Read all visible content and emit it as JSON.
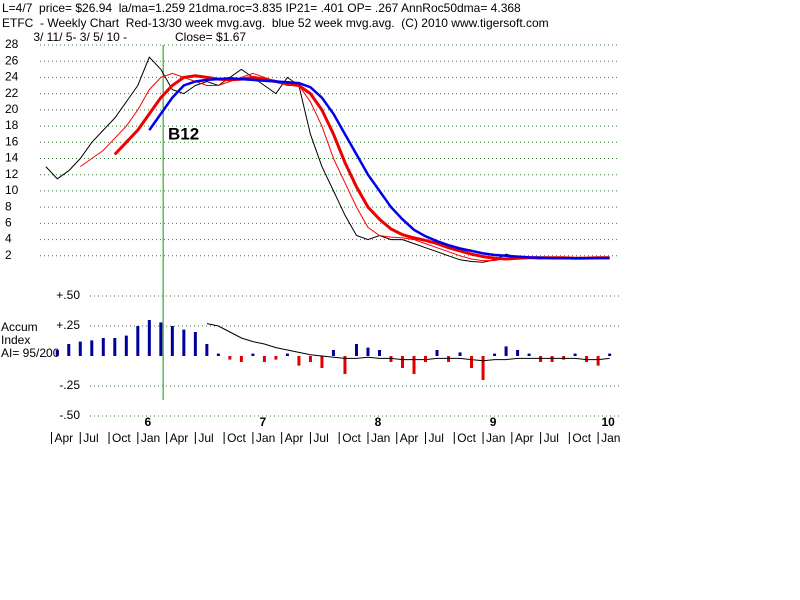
{
  "chart_data": [
    {
      "type": "line",
      "header": "L=4/7  price= $26.94  la/ma=1.259 21dma.roc=3.835 IP21= .401 OP= .267 AnnRoc50dma= 4.368",
      "title": "ETFC  - Weekly Chart  Red-13/30 week mvg.avg.  blue 52 week mvg.avg.  (C) 2010 www.tigersoft.com",
      "subtitle": " 3/ 11/ 5- 3/ 5/ 10 -",
      "annotations": [
        "Close= $1.67",
        "B12"
      ],
      "signal_x": 6.22,
      "xlim": [
        5.15,
        10.19
      ],
      "ylim": [
        0,
        28
      ],
      "yticks": [
        2,
        4,
        6,
        8,
        10,
        12,
        14,
        16,
        18,
        20,
        22,
        24,
        26,
        28
      ],
      "grid": true,
      "x": [
        5.2,
        5.3,
        5.4,
        5.5,
        5.6,
        5.7,
        5.8,
        5.9,
        6.0,
        6.1,
        6.2,
        6.3,
        6.4,
        6.5,
        6.6,
        6.7,
        6.8,
        6.9,
        7.0,
        7.1,
        7.2,
        7.3,
        7.4,
        7.5,
        7.6,
        7.7,
        7.8,
        7.9,
        8.0,
        8.1,
        8.2,
        8.3,
        8.4,
        8.5,
        8.6,
        8.7,
        8.8,
        8.9,
        9.0,
        9.1,
        9.2,
        9.3,
        9.4,
        9.5,
        9.6,
        9.7,
        9.8,
        9.9,
        10.0,
        10.1
      ],
      "series": [
        {
          "color": "#000000",
          "width": 1,
          "values": [
            13,
            11.5,
            12.5,
            14,
            16,
            17.5,
            19,
            21,
            23,
            26.5,
            25,
            22.5,
            22,
            23,
            23.5,
            23,
            24,
            25,
            24,
            23,
            22,
            24,
            23,
            17,
            13,
            10,
            7,
            4.5,
            4,
            4.5,
            4,
            4,
            3.5,
            3,
            2.5,
            2,
            1.5,
            1.3,
            1.2,
            1.5,
            2.2,
            1.8,
            1.7,
            1.6,
            1.8,
            1.7,
            1.6,
            1.8,
            1.8,
            1.7
          ]
        },
        {
          "color": "#ff0000",
          "width": 1,
          "values": [
            null,
            null,
            null,
            13,
            14,
            15,
            16.5,
            18,
            20,
            22.5,
            24,
            24.5,
            24,
            23.5,
            23,
            23,
            23.5,
            24,
            24.5,
            24,
            23.5,
            23,
            23,
            21,
            18,
            14,
            11,
            8,
            5.5,
            4.5,
            4.3,
            4.2,
            4,
            3.5,
            3,
            2.5,
            2,
            1.6,
            1.4,
            1.4,
            1.7,
            1.9,
            1.8,
            1.7,
            1.7,
            1.7,
            1.7,
            1.7,
            1.8,
            1.75
          ]
        },
        {
          "color": "#ee0000",
          "width": 3,
          "values": [
            null,
            null,
            null,
            null,
            null,
            null,
            14.5,
            16,
            17.5,
            19.5,
            21.5,
            23,
            24,
            24.2,
            24,
            23.8,
            23.7,
            23.8,
            24,
            23.8,
            23.5,
            23.2,
            23,
            22,
            20,
            17,
            13.5,
            10.5,
            8,
            6.5,
            5.3,
            4.6,
            4.2,
            3.9,
            3.5,
            3,
            2.6,
            2.2,
            1.9,
            1.7,
            1.6,
            1.7,
            1.75,
            1.75,
            1.75,
            1.75,
            1.7,
            1.72,
            1.75,
            1.75
          ]
        },
        {
          "color": "#0000ee",
          "width": 2.5,
          "values": [
            null,
            null,
            null,
            null,
            null,
            null,
            null,
            null,
            null,
            17.5,
            19.5,
            21.5,
            23,
            23.5,
            23.7,
            23.8,
            23.9,
            23.8,
            23.7,
            23.6,
            23.5,
            23.4,
            23.3,
            22.8,
            21.5,
            19.5,
            17,
            14.5,
            12,
            10,
            8,
            6.5,
            5.2,
            4.4,
            3.8,
            3.3,
            2.9,
            2.6,
            2.3,
            2.1,
            2.0,
            1.9,
            1.8,
            1.75,
            1.7,
            1.7,
            1.7,
            1.7,
            1.72,
            1.72
          ]
        }
      ]
    },
    {
      "type": "bar",
      "ylabel_lines": [
        "Accum",
        "Index",
        "AI= 95/200"
      ],
      "xlim": [
        5.15,
        10.19
      ],
      "ylim": [
        -0.5,
        0.5
      ],
      "yticks": [
        {
          "value": 0.5,
          "label": "+.50"
        },
        {
          "value": 0.25,
          "label": "+.25"
        },
        {
          "value": -0.25,
          "label": "-.25"
        },
        {
          "value": -0.5,
          "label": "-.50"
        }
      ],
      "positive_color": "#00009a",
      "negative_color": "#e00000",
      "line_color": "#000000",
      "year_ticks": [
        6,
        7,
        8,
        9,
        10
      ],
      "xticks": [
        {
          "value": 5.25,
          "label": "Apr"
        },
        {
          "value": 5.5,
          "label": "Jul"
        },
        {
          "value": 5.75,
          "label": "Oct"
        },
        {
          "value": 6,
          "label": "Jan"
        },
        {
          "value": 6.25,
          "label": "Apr"
        },
        {
          "value": 6.5,
          "label": "Jul"
        },
        {
          "value": 6.75,
          "label": "Oct"
        },
        {
          "value": 7,
          "label": "Jan"
        },
        {
          "value": 7.25,
          "label": "Apr"
        },
        {
          "value": 7.5,
          "label": "Jul"
        },
        {
          "value": 7.75,
          "label": "Oct"
        },
        {
          "value": 8,
          "label": "Jan"
        },
        {
          "value": 8.25,
          "label": "Apr"
        },
        {
          "value": 8.5,
          "label": "Jul"
        },
        {
          "value": 8.75,
          "label": "Oct"
        },
        {
          "value": 9,
          "label": "Jan"
        },
        {
          "value": 9.25,
          "label": "Apr"
        },
        {
          "value": 9.5,
          "label": "Jul"
        },
        {
          "value": 9.75,
          "label": "Oct"
        },
        {
          "value": 10,
          "label": "Jan"
        }
      ],
      "x": [
        5.2,
        5.3,
        5.4,
        5.5,
        5.6,
        5.7,
        5.8,
        5.9,
        6.0,
        6.1,
        6.2,
        6.3,
        6.4,
        6.5,
        6.6,
        6.7,
        6.8,
        6.9,
        7.0,
        7.1,
        7.2,
        7.3,
        7.4,
        7.5,
        7.6,
        7.7,
        7.8,
        7.9,
        8.0,
        8.1,
        8.2,
        8.3,
        8.4,
        8.5,
        8.6,
        8.7,
        8.8,
        8.9,
        9.0,
        9.1,
        9.2,
        9.3,
        9.4,
        9.5,
        9.6,
        9.7,
        9.8,
        9.9,
        10.0,
        10.1
      ],
      "values": [
        0,
        0.05,
        0.1,
        0.12,
        0.13,
        0.15,
        0.15,
        0.17,
        0.25,
        0.3,
        0.28,
        0.25,
        0.22,
        0.2,
        0.1,
        0.02,
        -0.03,
        -0.05,
        0.02,
        -0.05,
        -0.03,
        0.02,
        -0.08,
        -0.05,
        -0.1,
        0.05,
        -0.15,
        0.1,
        0.07,
        0.05,
        -0.05,
        -0.1,
        -0.15,
        -0.05,
        0.05,
        -0.05,
        0.03,
        -0.1,
        -0.2,
        0.02,
        0.08,
        0.05,
        0.02,
        -0.05,
        -0.05,
        -0.03,
        0.02,
        -0.05,
        -0.08,
        0.02
      ],
      "line_values": [
        null,
        null,
        null,
        null,
        null,
        null,
        null,
        null,
        null,
        null,
        null,
        null,
        null,
        null,
        0.27,
        0.25,
        0.2,
        0.15,
        0.12,
        0.1,
        0.07,
        0.05,
        0.03,
        0.01,
        0,
        -0.01,
        -0.02,
        -0.02,
        -0.01,
        -0.02,
        -0.02,
        -0.03,
        -0.03,
        -0.03,
        -0.02,
        -0.02,
        -0.02,
        -0.03,
        -0.04,
        -0.03,
        -0.03,
        -0.02,
        -0.02,
        -0.02,
        -0.02,
        -0.02,
        -0.02,
        -0.03,
        -0.03,
        -0.02
      ]
    }
  ]
}
